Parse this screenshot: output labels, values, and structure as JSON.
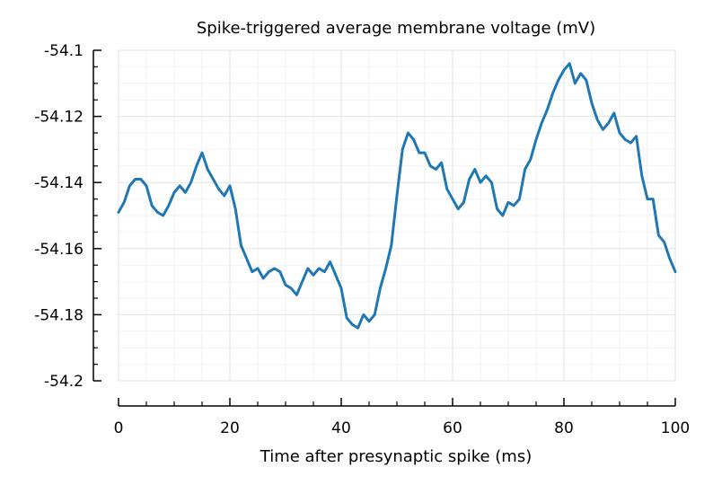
{
  "chart_data": {
    "type": "line",
    "title": "Spike-triggered average membrane voltage (mV)",
    "xlabel": "Time after presynaptic spike (ms)",
    "ylabel": "",
    "xlim": [
      0,
      100
    ],
    "ylim": [
      -54.2,
      -54.1
    ],
    "xticks": [
      0,
      20,
      40,
      60,
      80,
      100
    ],
    "xtick_labels": [
      "0",
      "20",
      "40",
      "60",
      "80",
      "100"
    ],
    "yticks": [
      -54.1,
      -54.12,
      -54.14,
      -54.16,
      -54.18,
      -54.2
    ],
    "ytick_labels": [
      "-54.1",
      "-54.12",
      "-54.14",
      "-54.16",
      "-54.18",
      "-54.2"
    ],
    "grid": true,
    "legend": "none",
    "series": [
      {
        "color": "#1f77b4",
        "x": [
          0,
          1,
          2,
          3,
          4,
          5,
          6,
          7,
          8,
          9,
          10,
          11,
          12,
          13,
          14,
          15,
          16,
          17,
          18,
          19,
          20,
          21,
          22,
          23,
          24,
          25,
          26,
          27,
          28,
          29,
          30,
          31,
          32,
          33,
          34,
          35,
          36,
          37,
          38,
          39,
          40,
          41,
          42,
          43,
          44,
          45,
          46,
          47,
          48,
          49,
          50,
          51,
          52,
          53,
          54,
          55,
          56,
          57,
          58,
          59,
          60,
          61,
          62,
          63,
          64,
          65,
          66,
          67,
          68,
          69,
          70,
          71,
          72,
          73,
          74,
          75,
          76,
          77,
          78,
          79,
          80,
          81,
          82,
          83,
          84,
          85,
          86,
          87,
          88,
          89,
          90,
          91,
          92,
          93,
          94,
          95,
          96,
          97,
          98,
          99,
          100
        ],
        "y": [
          -54.149,
          -54.146,
          -54.141,
          -54.139,
          -54.139,
          -54.141,
          -54.147,
          -54.149,
          -54.15,
          -54.147,
          -54.143,
          -54.141,
          -54.143,
          -54.14,
          -54.135,
          -54.131,
          -54.136,
          -54.139,
          -54.142,
          -54.144,
          -54.141,
          -54.148,
          -54.159,
          -54.163,
          -54.167,
          -54.166,
          -54.169,
          -54.167,
          -54.166,
          -54.167,
          -54.171,
          -54.172,
          -54.174,
          -54.17,
          -54.166,
          -54.168,
          -54.166,
          -54.167,
          -54.164,
          -54.168,
          -54.172,
          -54.181,
          -54.183,
          -54.184,
          -54.18,
          -54.182,
          -54.18,
          -54.172,
          -54.166,
          -54.159,
          -54.144,
          -54.13,
          -54.125,
          -54.127,
          -54.131,
          -54.131,
          -54.135,
          -54.136,
          -54.134,
          -54.142,
          -54.145,
          -54.148,
          -54.146,
          -54.139,
          -54.136,
          -54.14,
          -54.138,
          -54.14,
          -54.148,
          -54.15,
          -54.146,
          -54.147,
          -54.145,
          -54.136,
          -54.133,
          -54.127,
          -54.122,
          -54.118,
          -54.113,
          -54.109,
          -54.106,
          -54.104,
          -54.11,
          -54.107,
          -54.109,
          -54.116,
          -54.121,
          -54.124,
          -54.122,
          -54.119,
          -54.125,
          -54.127,
          -54.128,
          -54.126,
          -54.138,
          -54.145,
          -54.145,
          -54.156,
          -54.158,
          -54.163,
          -54.167
        ]
      }
    ]
  }
}
